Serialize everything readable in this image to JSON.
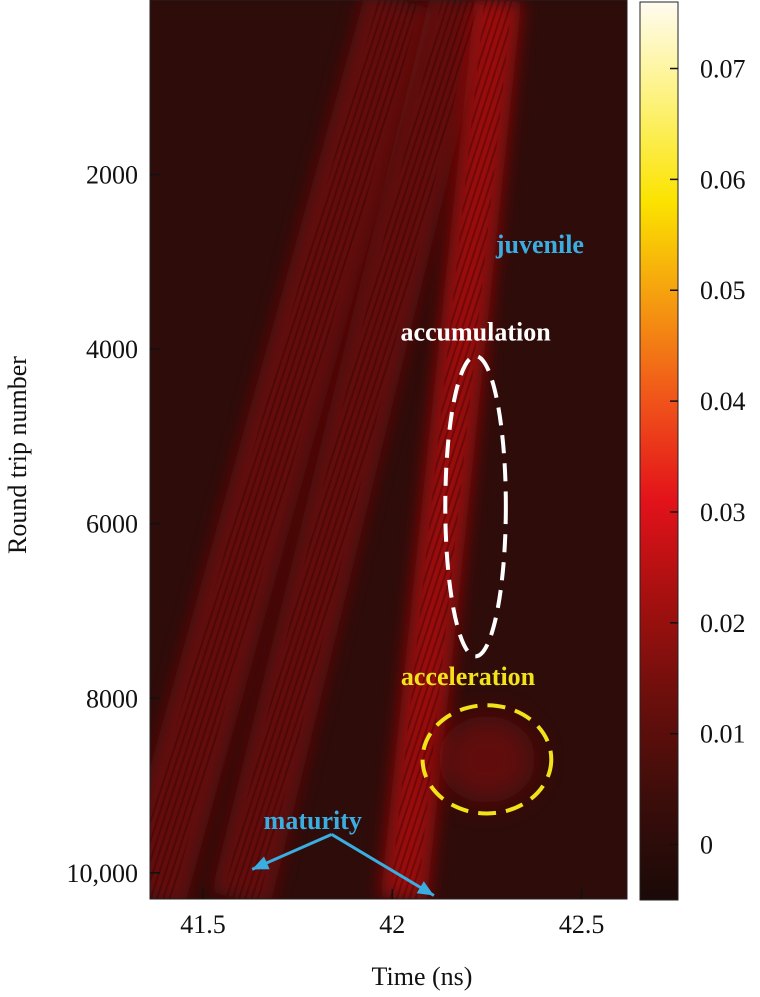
{
  "chart_data": {
    "type": "heatmap",
    "title": "",
    "xlabel": "Time (ns)",
    "ylabel": "Round trip number",
    "xlim": [
      41.36,
      42.62
    ],
    "ylim": [
      0,
      10300
    ],
    "y_inverted": true,
    "x_ticks": [
      {
        "value": 41.5,
        "label": "41.5"
      },
      {
        "value": 42,
        "label": "42"
      },
      {
        "value": 42.5,
        "label": "42.5"
      }
    ],
    "y_ticks": [
      {
        "value": 2000,
        "label": "2000"
      },
      {
        "value": 4000,
        "label": "4000"
      },
      {
        "value": 6000,
        "label": "6000"
      },
      {
        "value": 8000,
        "label": "8000"
      },
      {
        "value": 10000,
        "label": "10,000"
      }
    ],
    "colorbar": {
      "range": [
        -0.005,
        0.076
      ],
      "ticks": [
        {
          "value": 0,
          "label": "0"
        },
        {
          "value": 0.01,
          "label": "0.01"
        },
        {
          "value": 0.02,
          "label": "0.02"
        },
        {
          "value": 0.03,
          "label": "0.03"
        },
        {
          "value": 0.04,
          "label": "0.04"
        },
        {
          "value": 0.05,
          "label": "0.05"
        },
        {
          "value": 0.06,
          "label": "0.06"
        },
        {
          "value": 0.07,
          "label": "0.07"
        }
      ],
      "colormap": [
        "#1a0a08",
        "#3b0d0a",
        "#6a0f0c",
        "#a4100f",
        "#e3121a",
        "#f0531a",
        "#f59b10",
        "#fbe300",
        "#fdf27a",
        "#fffbf0"
      ]
    },
    "background_color": "#2e0c0a",
    "streaks": [
      {
        "t_top": 42.02,
        "t_bottom": 41.36,
        "rt_top": 0,
        "rt_bottom": 10300,
        "intensity": 0.016
      },
      {
        "t_top": 42.18,
        "t_bottom": 41.6,
        "rt_top": 0,
        "rt_bottom": 10300,
        "intensity": 0.012
      },
      {
        "t_top": 42.28,
        "t_bottom": 42.03,
        "rt_top": 0,
        "rt_bottom": 10300,
        "intensity": 0.02
      }
    ],
    "annotations": [
      {
        "label": "juvenile",
        "color": "#3aaee0",
        "t": 42.39,
        "round_trip": 2900
      },
      {
        "label": "accumulation",
        "color": "#ffffff",
        "t": 42.22,
        "round_trip": 3900
      },
      {
        "label": "acceleration",
        "color": "#f2e21a",
        "t": 42.2,
        "round_trip": 7850
      },
      {
        "label": "maturity",
        "color": "#3aaee0",
        "t": 41.79,
        "round_trip": 9500
      }
    ],
    "regions": [
      {
        "name": "accumulation",
        "shape": "ellipse",
        "style": "dashed",
        "color": "#ffffff",
        "t_center": 42.22,
        "rt_center": 5800,
        "t_halfwidth": 0.08,
        "rt_halfwidth": 1720
      },
      {
        "name": "acceleration",
        "shape": "ellipse",
        "style": "dashed",
        "color": "#f2e21a",
        "t_center": 42.25,
        "rt_center": 8700,
        "t_halfwidth": 0.17,
        "rt_halfwidth": 620
      }
    ],
    "arrows": [
      {
        "name": "maturity",
        "color": "#3aaee0",
        "from": {
          "t": 41.84,
          "round_trip": 9560
        },
        "to": {
          "t": 41.63,
          "round_trip": 9960
        }
      },
      {
        "name": "maturity",
        "color": "#3aaee0",
        "from": {
          "t": 41.84,
          "round_trip": 9560
        },
        "to": {
          "t": 42.11,
          "round_trip": 10260
        }
      }
    ]
  }
}
